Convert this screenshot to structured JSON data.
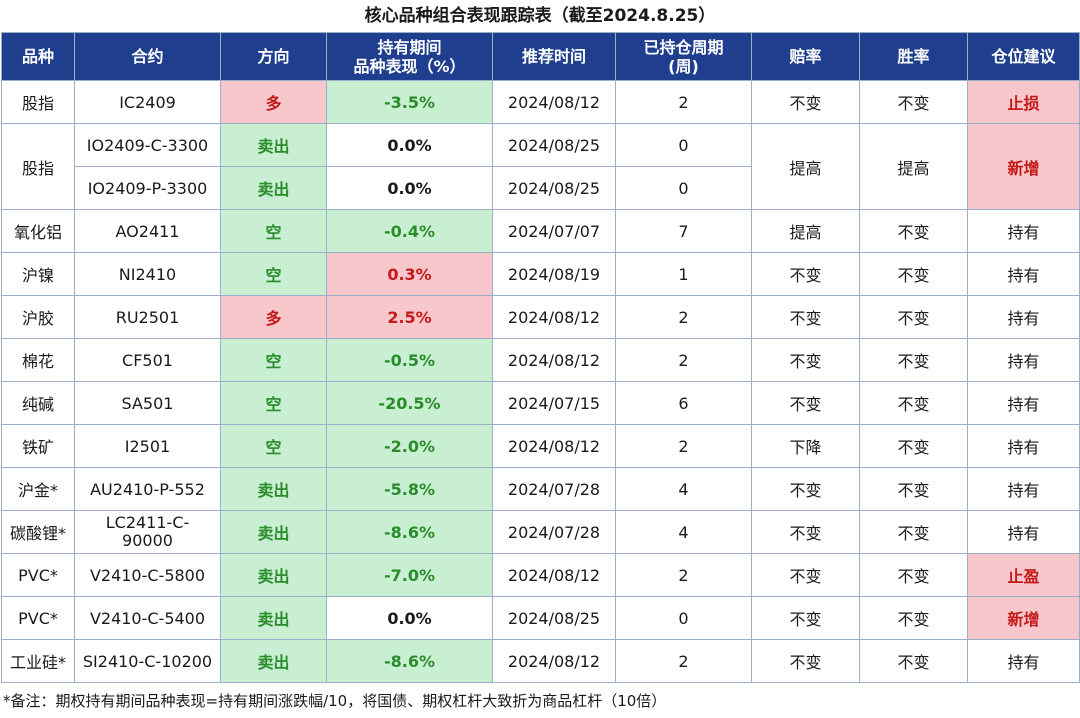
{
  "title": "核心品种组合表现跟踪表（截至2024.8.25）",
  "headers": {
    "variety": "品种",
    "contract": "合约",
    "direction": "方向",
    "perf_line1": "持有期间",
    "perf_line2": "品种表现（%）",
    "rec_time": "推荐时间",
    "weeks_line1": "已持仓周期",
    "weeks_line2": "(周)",
    "odds": "赔率",
    "win_rate": "胜率",
    "advice": "仓位建议"
  },
  "rows": [
    {
      "variety": "股指",
      "contract": "IC2409",
      "direction": "多",
      "perf": "-3.5%",
      "date": "2024/08/12",
      "weeks": "2",
      "odds": "不变",
      "win": "不变",
      "advice": "止损"
    },
    {
      "variety": "股指",
      "contract": "IO2409-C-3300",
      "direction": "卖出",
      "perf": "0.0%",
      "date": "2024/08/25",
      "weeks": "0",
      "odds": "提高",
      "win": "提高",
      "advice": "新增"
    },
    {
      "contract": "IO2409-P-3300",
      "direction": "卖出",
      "perf": "0.0%",
      "date": "2024/08/25",
      "weeks": "0"
    },
    {
      "variety": "氧化铝",
      "contract": "AO2411",
      "direction": "空",
      "perf": "-0.4%",
      "date": "2024/07/07",
      "weeks": "7",
      "odds": "提高",
      "win": "不变",
      "advice": "持有"
    },
    {
      "variety": "沪镍",
      "contract": "NI2410",
      "direction": "空",
      "perf": "0.3%",
      "date": "2024/08/19",
      "weeks": "1",
      "odds": "不变",
      "win": "不变",
      "advice": "持有"
    },
    {
      "variety": "沪胶",
      "contract": "RU2501",
      "direction": "多",
      "perf": "2.5%",
      "date": "2024/08/12",
      "weeks": "2",
      "odds": "不变",
      "win": "不变",
      "advice": "持有"
    },
    {
      "variety": "棉花",
      "contract": "CF501",
      "direction": "空",
      "perf": "-0.5%",
      "date": "2024/08/12",
      "weeks": "2",
      "odds": "不变",
      "win": "不变",
      "advice": "持有"
    },
    {
      "variety": "纯碱",
      "contract": "SA501",
      "direction": "空",
      "perf": "-20.5%",
      "date": "2024/07/15",
      "weeks": "6",
      "odds": "不变",
      "win": "不变",
      "advice": "持有"
    },
    {
      "variety": "铁矿",
      "contract": "I2501",
      "direction": "空",
      "perf": "-2.0%",
      "date": "2024/08/12",
      "weeks": "2",
      "odds": "下降",
      "win": "不变",
      "advice": "持有"
    },
    {
      "variety": "沪金*",
      "contract": "AU2410-P-552",
      "direction": "卖出",
      "perf": "-5.8%",
      "date": "2024/07/28",
      "weeks": "4",
      "odds": "不变",
      "win": "不变",
      "advice": "持有"
    },
    {
      "variety": "碳酸锂*",
      "contract": "LC2411-C-",
      "contract2": "90000",
      "direction": "卖出",
      "perf": "-8.6%",
      "date": "2024/07/28",
      "weeks": "4",
      "odds": "不变",
      "win": "不变",
      "advice": "持有"
    },
    {
      "variety": "PVC*",
      "contract": "V2410-C-5800",
      "direction": "卖出",
      "perf": "-7.0%",
      "date": "2024/08/12",
      "weeks": "2",
      "odds": "不变",
      "win": "不变",
      "advice": "止盈"
    },
    {
      "variety": "PVC*",
      "contract": "V2410-C-5400",
      "direction": "卖出",
      "perf": "0.0%",
      "date": "2024/08/25",
      "weeks": "0",
      "odds": "不变",
      "win": "不变",
      "advice": "新增"
    },
    {
      "variety": "工业硅*",
      "contract": "SI2410-C-10200",
      "direction": "卖出",
      "perf": "-8.6%",
      "date": "2024/08/12",
      "weeks": "2",
      "odds": "不变",
      "win": "不变",
      "advice": "持有"
    }
  ],
  "note": "*备注：期权持有期间品种表现=持有期间涨跌幅/10，将国债、期权杠杆大致折为商品杠杆（10倍）",
  "colors": {
    "header_bg": "#1f3f8e",
    "green_bg": "#c9efd2",
    "green_text": "#2b8c2b",
    "pink_bg": "#f8c7cc",
    "red_text": "#c41a1a"
  }
}
